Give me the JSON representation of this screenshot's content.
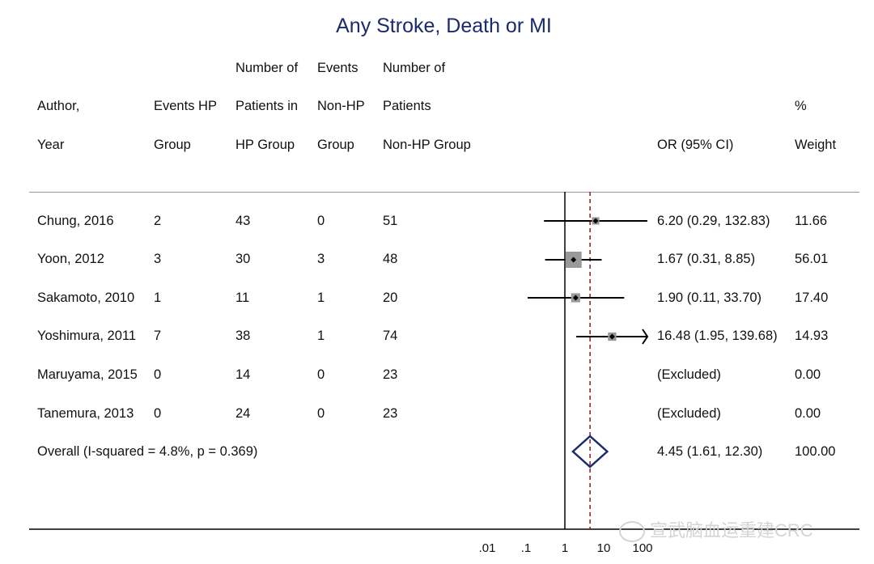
{
  "chart_data": {
    "type": "forest",
    "title": "Any Stroke, Death or MI",
    "columns": {
      "author": [
        "Author,",
        "Year"
      ],
      "events_hp": [
        "Events HP",
        "Group"
      ],
      "patients_hp": [
        "Number of",
        "Patients in",
        "HP Group"
      ],
      "events_nonhp": [
        "Events",
        "Non-HP",
        "Group"
      ],
      "patients_nonhp": [
        "Number of",
        "Patients",
        "Non-HP Group"
      ],
      "or": [
        "OR (95% CI)"
      ],
      "weight": [
        "%",
        "Weight"
      ]
    },
    "studies": [
      {
        "author": "Chung, 2016",
        "events_hp": "2",
        "patients_hp": "43",
        "events_nonhp": "0",
        "patients_nonhp": "51",
        "or_text": "6.20 (0.29, 132.83)",
        "weight_text": "11.66",
        "or": 6.2,
        "lower": 0.29,
        "upper": 132.83,
        "weight": 11.66
      },
      {
        "author": "Yoon, 2012",
        "events_hp": "3",
        "patients_hp": "30",
        "events_nonhp": "3",
        "patients_nonhp": "48",
        "or_text": "1.67 (0.31, 8.85)",
        "weight_text": "56.01",
        "or": 1.67,
        "lower": 0.31,
        "upper": 8.85,
        "weight": 56.01
      },
      {
        "author": "Sakamoto, 2010",
        "events_hp": "1",
        "patients_hp": "11",
        "events_nonhp": "1",
        "patients_nonhp": "20",
        "or_text": "1.90 (0.11, 33.70)",
        "weight_text": "17.40",
        "or": 1.9,
        "lower": 0.11,
        "upper": 33.7,
        "weight": 17.4
      },
      {
        "author": "Yoshimura, 2011",
        "events_hp": "7",
        "patients_hp": "38",
        "events_nonhp": "1",
        "patients_nonhp": "74",
        "or_text": "16.48 (1.95, 139.68)",
        "weight_text": "14.93",
        "or": 16.48,
        "lower": 1.95,
        "upper": 139.68,
        "weight": 14.93
      },
      {
        "author": "Maruyama, 2015",
        "events_hp": "0",
        "patients_hp": "14",
        "events_nonhp": "0",
        "patients_nonhp": "23",
        "or_text": "(Excluded)",
        "weight_text": "0.00",
        "or": null,
        "lower": null,
        "upper": null,
        "weight": 0.0
      },
      {
        "author": "Tanemura, 2013",
        "events_hp": "0",
        "patients_hp": "24",
        "events_nonhp": "0",
        "patients_nonhp": "23",
        "or_text": "(Excluded)",
        "weight_text": "0.00",
        "or": null,
        "lower": null,
        "upper": null,
        "weight": 0.0
      }
    ],
    "overall": {
      "label": "Overall  (I-squared = 4.8%, p = 0.369)",
      "or_text": "4.45 (1.61, 12.30)",
      "weight_text": "100.00",
      "or": 4.45,
      "lower": 1.61,
      "upper": 12.3
    },
    "x_scale": "log",
    "xlim": [
      0.01,
      100
    ],
    "x_ticks": [
      ".01",
      ".1",
      "1",
      "10",
      "100"
    ],
    "x_tick_values": [
      0.01,
      0.1,
      1,
      10,
      100
    ],
    "colors": {
      "title": "#1a2a6c",
      "diamond": "#1a2a6c",
      "dashed_line": "#8b1a1a",
      "box": "#999999",
      "ci": "#000000"
    }
  },
  "watermark": "宣武脑血运重建CRC"
}
